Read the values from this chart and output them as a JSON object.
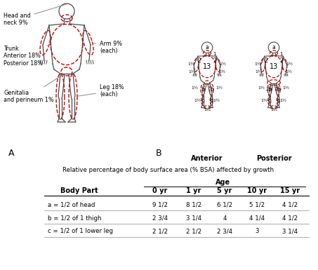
{
  "title_subtitle": "Relative percentage of body surface area (% BSA) affected by growth",
  "label_A": "A",
  "label_B": "B",
  "adult_labels": {
    "head_neck": "Head and\nneck 9%",
    "trunk": "Trunk\nAnterior 18%\nPosterior 18%",
    "arm": "Arm 9%\n(each)",
    "genitalia": "Genitalia\nand perineum 1%",
    "leg": "Leg 18%\n(each)"
  },
  "anterior_label": "Anterior",
  "posterior_label": "Posterior",
  "table_header_age": "Age",
  "table_cols": [
    "Body Part",
    "0 yr",
    "1 yr",
    "5 yr",
    "10 yr",
    "15 yr"
  ],
  "table_rows": [
    [
      "a = 1/2 of head",
      "9 1/2",
      "8 1/2",
      "6 1/2",
      "5 1/2",
      "4 1/2"
    ],
    [
      "b = 1/2 of 1 thigh",
      "2 3/4",
      "3 1/4",
      "4",
      "4 1/4",
      "4 1/2"
    ],
    [
      "c = 1/2 of 1 lower leg",
      "2 1/2",
      "2 1/2",
      "2 3/4",
      "3",
      "3 1/4"
    ]
  ],
  "bg_color": "#ffffff",
  "line_color": "#4a4a4a",
  "dashed_color": "#cc0000",
  "text_color": "#000000",
  "table_line_color": "#888888"
}
